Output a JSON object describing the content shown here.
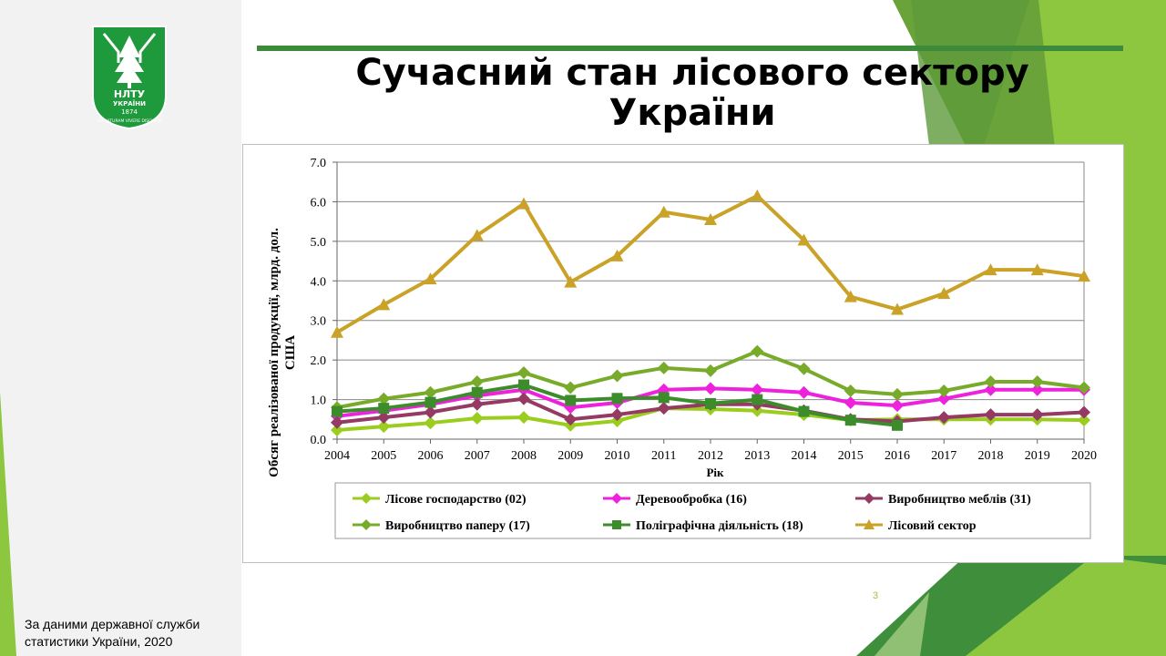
{
  "slide": {
    "title_line1": "Сучасний стан лісового сектору",
    "title_line2": "України",
    "footnote_line1": "За даними державної служби",
    "footnote_line2": "статистики України, 2020",
    "page_number": "3",
    "logo_text": "НЛТУ УКРАЇНИ 1874 AD NATURAM VIVERE DISCIMUS"
  },
  "colors": {
    "accent_green": "#3d8a3a",
    "light_green": "#8dc63f"
  },
  "chart_data": {
    "type": "line",
    "title": "",
    "xlabel": "Рік",
    "ylabel": "Обсяг реалізованої продукції, млрд. дол. США",
    "ylim": [
      0,
      7
    ],
    "yticks": [
      "0.0",
      "1.0",
      "2.0",
      "3.0",
      "4.0",
      "5.0",
      "6.0",
      "7.0"
    ],
    "grid": true,
    "legend_position": "bottom",
    "x": [
      "2004",
      "2005",
      "2006",
      "2007",
      "2008",
      "2009",
      "2010",
      "2011",
      "2012",
      "2013",
      "2014",
      "2015",
      "2016",
      "2017",
      "2018",
      "2019",
      "2020"
    ],
    "series": [
      {
        "name": "Лісове господарство (02)",
        "color": "#9acd1e",
        "marker": "diamond",
        "values": [
          0.23,
          0.32,
          0.41,
          0.53,
          0.55,
          0.35,
          0.46,
          0.78,
          0.76,
          0.72,
          0.62,
          0.48,
          0.5,
          0.5,
          0.5,
          0.5,
          0.48
        ]
      },
      {
        "name": "Деревообробка (16)",
        "color": "#ee22dd",
        "marker": "diamond",
        "values": [
          0.58,
          0.72,
          0.88,
          1.1,
          1.25,
          0.8,
          0.92,
          1.25,
          1.28,
          1.25,
          1.18,
          0.92,
          0.85,
          1.02,
          1.25,
          1.25,
          1.25
        ]
      },
      {
        "name": "Виробництво меблів (31)",
        "color": "#953a63",
        "marker": "diamond",
        "values": [
          0.42,
          0.55,
          0.68,
          0.88,
          1.02,
          0.5,
          0.62,
          0.78,
          0.88,
          0.88,
          0.72,
          0.5,
          0.45,
          0.55,
          0.62,
          0.62,
          0.68
        ]
      },
      {
        "name": "Виробництво паперу (17)",
        "color": "#78ab2a",
        "marker": "diamond",
        "values": [
          0.8,
          1.02,
          1.18,
          1.45,
          1.68,
          1.3,
          1.6,
          1.8,
          1.73,
          2.22,
          1.78,
          1.22,
          1.13,
          1.22,
          1.45,
          1.45,
          1.3
        ]
      },
      {
        "name": "Поліграфічна діяльність (18)",
        "color": "#3c8c2c",
        "marker": "square",
        "values": [
          0.7,
          0.78,
          0.93,
          1.18,
          1.37,
          0.98,
          1.03,
          1.05,
          0.9,
          1.0,
          0.7,
          0.48,
          0.35,
          null,
          null,
          null,
          null
        ]
      },
      {
        "name": "Лісовий сектор",
        "color": "#c9a227",
        "marker": "triangle",
        "values": [
          2.7,
          3.4,
          4.05,
          5.15,
          5.95,
          3.97,
          4.63,
          5.74,
          5.55,
          6.15,
          5.03,
          3.6,
          3.28,
          3.68,
          4.28,
          4.28,
          4.12
        ]
      }
    ]
  }
}
